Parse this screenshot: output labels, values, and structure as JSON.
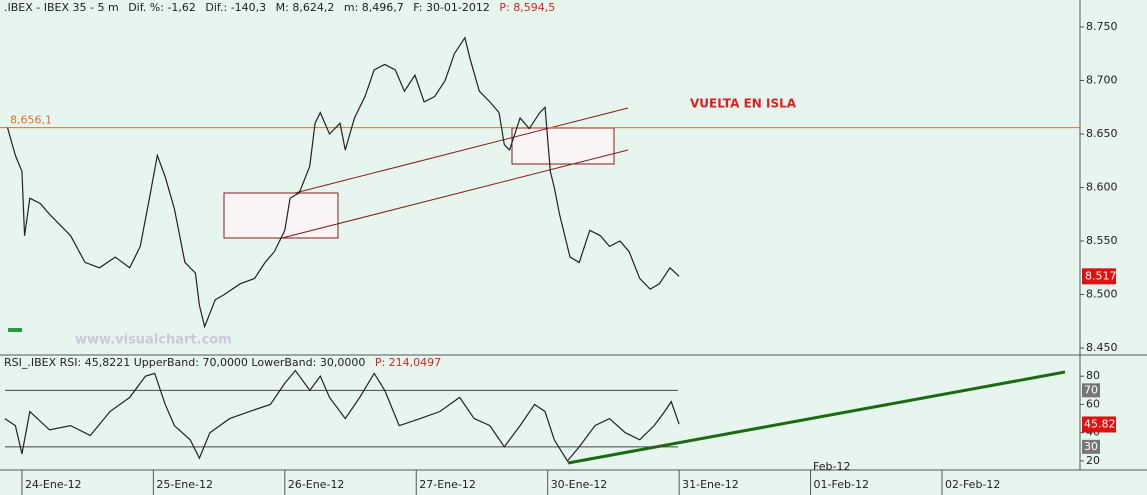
{
  "chart_data": [
    {
      "type": "line",
      "header": [
        ".IBEX - IBEX 35 - 5 m",
        "Dif. %: -1,62",
        "Dif.: -140,3",
        "M: 8,624,2",
        "m: 8,496,7",
        "F: 30-01-2012",
        "P: 8,594,5"
      ],
      "annotations": [
        "VUELTA EN ISLA",
        "www.visualchart.com",
        "Feb-12"
      ],
      "hline": {
        "value": 8.656,
        "label": "8,656,1"
      },
      "last_price": 8.517,
      "xlim": [
        -0.167,
        8.05
      ],
      "xticks": [
        {
          "value": 0,
          "label": "24-Ene-12"
        },
        {
          "value": 1,
          "label": "25-Ene-12"
        },
        {
          "value": 2,
          "label": "26-Ene-12"
        },
        {
          "value": 3,
          "label": "27-Ene-12"
        },
        {
          "value": 4,
          "label": "30-Ene-12"
        },
        {
          "value": 5,
          "label": "31-Ene-12"
        },
        {
          "value": 6,
          "label": "01-Feb-12"
        },
        {
          "value": 7,
          "label": "02-Feb-12"
        }
      ],
      "ylim": [
        8.4435,
        8.7752
      ],
      "yticks": [
        {
          "value": 8.45,
          "label": "8.450"
        },
        {
          "value": 8.5,
          "label": "8.500"
        },
        {
          "value": 8.55,
          "label": "8.550"
        },
        {
          "value": 8.6,
          "label": "8.600"
        },
        {
          "value": 8.65,
          "label": "8.650"
        },
        {
          "value": 8.7,
          "label": "8.700"
        },
        {
          "value": 8.75,
          "label": "8.750"
        }
      ],
      "series": [
        {
          "name": "IBEX 35",
          "color": "#222222",
          "x": [
            -0.11,
            -0.05,
            0,
            0.02,
            0.06,
            0.14,
            0.21,
            0.37,
            0.48,
            0.59,
            0.71,
            0.82,
            0.9,
            0.97,
            1.03,
            1.09,
            1.16,
            1.24,
            1.32,
            1.35,
            1.39,
            1.47,
            1.54,
            1.66,
            1.77,
            1.85,
            1.92,
            2.0,
            2.04,
            2.11,
            2.19,
            2.23,
            2.27,
            2.34,
            2.42,
            2.46,
            2.53,
            2.61,
            2.68,
            2.76,
            2.84,
            2.91,
            2.99,
            3.06,
            3.14,
            3.22,
            3.29,
            3.37,
            3.41,
            3.48,
            3.56,
            3.63,
            3.67,
            3.71,
            3.79,
            3.86,
            3.94,
            3.98,
            4.02,
            4.05,
            4.09,
            4.17,
            4.24,
            4.32,
            4.4,
            4.47,
            4.55,
            4.62,
            4.7,
            4.78,
            4.85,
            4.93,
            5.0
          ],
          "values": [
            8.656,
            8.63,
            8.615,
            8.555,
            8.59,
            8.585,
            8.575,
            8.555,
            8.53,
            8.525,
            8.535,
            8.525,
            8.545,
            8.59,
            8.63,
            8.61,
            8.58,
            8.53,
            8.52,
            8.49,
            8.47,
            8.495,
            8.5,
            8.51,
            8.515,
            8.53,
            8.54,
            8.56,
            8.59,
            8.595,
            8.62,
            8.66,
            8.67,
            8.65,
            8.66,
            8.635,
            8.665,
            8.685,
            8.71,
            8.715,
            8.71,
            8.69,
            8.705,
            8.68,
            8.685,
            8.7,
            8.725,
            8.74,
            8.72,
            8.69,
            8.68,
            8.67,
            8.64,
            8.635,
            8.665,
            8.655,
            8.67,
            8.675,
            8.615,
            8.6,
            8.575,
            8.535,
            8.53,
            8.56,
            8.555,
            8.545,
            8.55,
            8.54,
            8.515,
            8.505,
            8.51,
            8.525,
            8.517
          ]
        }
      ]
    },
    {
      "type": "line",
      "header": [
        "RSI_.IBEX RSI: 45,8221 UpperBand: 70,0000 LowerBand: 30,0000",
        "P: 214,0497"
      ],
      "upper_band": 70,
      "lower_band": 30,
      "last_value": 45.82,
      "xlim": [
        -0.167,
        8.05
      ],
      "y2lim": [
        13.6,
        95
      ],
      "y2ticks": [
        20,
        40,
        60,
        80
      ],
      "series": [
        {
          "name": "RSI",
          "color": "#222222",
          "axis": "y2",
          "x": [
            -0.13,
            -0.05,
            0,
            0.06,
            0.21,
            0.37,
            0.52,
            0.67,
            0.82,
            0.94,
            1.01,
            1.09,
            1.16,
            1.28,
            1.35,
            1.43,
            1.58,
            1.73,
            1.89,
            2.0,
            2.08,
            2.19,
            2.27,
            2.34,
            2.46,
            2.57,
            2.68,
            2.76,
            2.87,
            3.03,
            3.18,
            3.33,
            3.44,
            3.56,
            3.67,
            3.79,
            3.9,
            3.98,
            4.05,
            4.15,
            4.24,
            4.36,
            4.47,
            4.59,
            4.7,
            4.81,
            4.89,
            4.94,
            5.0
          ],
          "values": [
            50,
            45,
            25,
            55,
            42,
            45,
            38,
            55,
            65,
            80,
            82,
            60,
            45,
            35,
            22,
            40,
            50,
            55,
            60,
            75,
            84,
            70,
            80,
            65,
            50,
            65,
            82,
            70,
            45,
            50,
            55,
            65,
            50,
            45,
            30,
            45,
            60,
            55,
            35,
            20,
            30,
            45,
            50,
            40,
            35,
            45,
            55,
            62,
            46
          ]
        }
      ]
    }
  ]
}
